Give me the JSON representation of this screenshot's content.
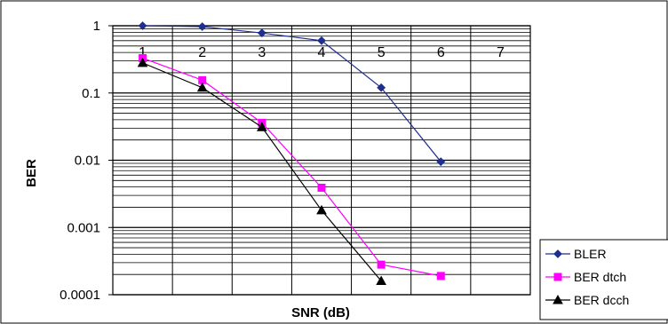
{
  "chart_data": {
    "type": "line",
    "xlabel": "SNR (dB)",
    "ylabel": "BER",
    "yscale": "log",
    "ylim": [
      0.0001,
      1
    ],
    "y_tick_labels": [
      "1",
      "0.1",
      "0.01",
      "0.001",
      "0.0001"
    ],
    "categories": [
      "1",
      "2",
      "3",
      "4",
      "5",
      "6",
      "7"
    ],
    "grid": true,
    "legend_position": "bottom-right",
    "series": [
      {
        "name": "BLER",
        "color": "#1f2f8f",
        "marker": "diamond",
        "values": [
          1.0,
          0.97,
          0.78,
          0.6,
          0.12,
          0.0095,
          null
        ]
      },
      {
        "name": "BER dtch",
        "color": "#ff00ff",
        "marker": "square",
        "values": [
          0.33,
          0.155,
          0.036,
          0.0039,
          0.00028,
          0.00019,
          null
        ]
      },
      {
        "name": "BER dcch",
        "color": "#000000",
        "marker": "triangle",
        "values": [
          0.28,
          0.12,
          0.031,
          0.0018,
          0.00016,
          null,
          null
        ]
      }
    ]
  }
}
